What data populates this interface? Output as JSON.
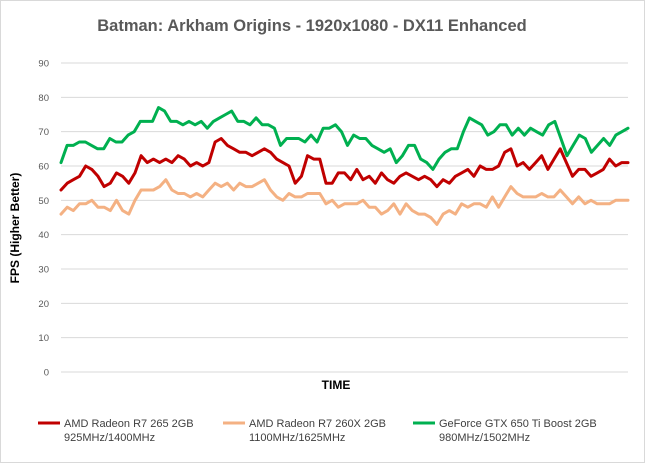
{
  "chart_data": {
    "type": "line",
    "title": "Batman:  Arkham  Origins  - 1920x1080 - DX11 Enhanced",
    "xlabel": "TIME",
    "ylabel": "FPS (Higher Better)",
    "ylim": [
      0,
      90
    ],
    "yticks": [
      0,
      10,
      20,
      30,
      40,
      50,
      60,
      70,
      80,
      90
    ],
    "grid": true,
    "legend_position": "bottom",
    "series": [
      {
        "name": "AMD Radeon R7 265 2GB",
        "name_line2": "925MHz/1400MHz",
        "color": "#C00000",
        "values": [
          53,
          55,
          56,
          57,
          60,
          59,
          57,
          54,
          55,
          58,
          57,
          55,
          58,
          63,
          61,
          62,
          61,
          62,
          61,
          63,
          62,
          60,
          61,
          60,
          61,
          67,
          68,
          66,
          65,
          64,
          64,
          63,
          64,
          65,
          64,
          62,
          61,
          60,
          55,
          57,
          63,
          62,
          62,
          55,
          55,
          58,
          58,
          56,
          59,
          56,
          57,
          55,
          58,
          56,
          55,
          57,
          58,
          57,
          56,
          57,
          56,
          54,
          56,
          55,
          57,
          58,
          59,
          57,
          60,
          59,
          59,
          60,
          64,
          65,
          60,
          61,
          59,
          61,
          63,
          59,
          62,
          65,
          61,
          57,
          59,
          59,
          57,
          58,
          59,
          62,
          60,
          61,
          61
        ]
      },
      {
        "name": "AMD Radeon R7 260X 2GB",
        "name_line2": "1100MHz/1625MHz",
        "color": "#F4B183",
        "values": [
          46,
          48,
          47,
          49,
          49,
          50,
          48,
          48,
          47,
          50,
          47,
          46,
          50,
          53,
          53,
          53,
          54,
          56,
          53,
          52,
          52,
          51,
          52,
          51,
          53,
          55,
          54,
          55,
          53,
          55,
          54,
          54,
          55,
          56,
          53,
          51,
          50,
          52,
          51,
          51,
          52,
          52,
          52,
          49,
          50,
          48,
          49,
          49,
          49,
          50,
          48,
          48,
          46,
          47,
          49,
          46,
          49,
          47,
          46,
          46,
          45,
          43,
          46,
          47,
          46,
          49,
          48,
          49,
          49,
          48,
          51,
          48,
          51,
          54,
          52,
          51,
          51,
          51,
          52,
          51,
          51,
          53,
          51,
          49,
          51,
          49,
          50,
          49,
          49,
          49,
          50,
          50,
          50
        ]
      },
      {
        "name": "GeForce GTX 650 Ti Boost 2GB",
        "name_line2": "980MHz/1502MHz",
        "color": "#00B050",
        "values": [
          61,
          66,
          66,
          67,
          67,
          66,
          65,
          65,
          68,
          67,
          67,
          69,
          70,
          73,
          73,
          73,
          77,
          76,
          73,
          73,
          72,
          73,
          72,
          73,
          71,
          73,
          74,
          75,
          76,
          73,
          73,
          72,
          74,
          72,
          72,
          71,
          66,
          68,
          68,
          68,
          67,
          69,
          67,
          71,
          71,
          72,
          70,
          66,
          69,
          68,
          68,
          66,
          65,
          64,
          65,
          61,
          63,
          66,
          66,
          62,
          61,
          59,
          62,
          64,
          65,
          65,
          70,
          74,
          73,
          72,
          69,
          70,
          72,
          72,
          69,
          71,
          69,
          71,
          70,
          69,
          72,
          73,
          68,
          63,
          66,
          69,
          68,
          64,
          66,
          68,
          66,
          69,
          70,
          71
        ]
      }
    ]
  }
}
